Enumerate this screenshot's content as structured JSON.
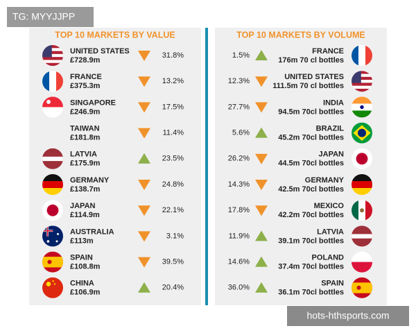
{
  "watermark_top": "TG: MYYJJPP",
  "watermark_bottom": "hots-hthsports.com",
  "value_panel": {
    "title": "TOP 10 MARKETS BY VALUE",
    "rows": [
      {
        "country": "UNITED STATES",
        "value": "£728.9m",
        "trend": "down",
        "change": "31.8%"
      },
      {
        "country": "FRANCE",
        "value": "£375.3m",
        "trend": "down",
        "change": "13.2%"
      },
      {
        "country": "SINGAPORE",
        "value": "£246.9m",
        "trend": "down",
        "change": "17.5%"
      },
      {
        "country": "TAIWAN",
        "value": "£181.8m",
        "trend": "down",
        "change": "11.4%"
      },
      {
        "country": "LATVIA",
        "value": "£175.9m",
        "trend": "up",
        "change": "23.5%"
      },
      {
        "country": "GERMANY",
        "value": "£138.7m",
        "trend": "down",
        "change": "24.8%"
      },
      {
        "country": "JAPAN",
        "value": "£114.9m",
        "trend": "down",
        "change": "22.1%"
      },
      {
        "country": "AUSTRALIA",
        "value": "£113m",
        "trend": "down",
        "change": "3.1%"
      },
      {
        "country": "SPAIN",
        "value": "£108.8m",
        "trend": "down",
        "change": "39.5%"
      },
      {
        "country": "CHINA",
        "value": "£106.9m",
        "trend": "up",
        "change": "20.4%"
      }
    ]
  },
  "volume_panel": {
    "title": "TOP 10 MARKETS BY VOLUME",
    "rows": [
      {
        "change": "1.5%",
        "trend": "up",
        "country": "FRANCE",
        "volume": "176m 70 cl bottles"
      },
      {
        "change": "12.3%",
        "trend": "down",
        "country": "UNITED STATES",
        "volume": "111.5m 70 cl bottles"
      },
      {
        "change": "27.7%",
        "trend": "down",
        "country": "INDIA",
        "volume": "94.5m 70cl bottles"
      },
      {
        "change": "5.6%",
        "trend": "up",
        "country": "BRAZIL",
        "volume": "45.2m 70cl bottles"
      },
      {
        "change": "26.2%",
        "trend": "down",
        "country": "JAPAN",
        "volume": "44.5m 70cl bottles"
      },
      {
        "change": "14.3%",
        "trend": "down",
        "country": "GERMANY",
        "volume": "42.5m 70cl bottles"
      },
      {
        "change": "17.8%",
        "trend": "down",
        "country": "MEXICO",
        "volume": "42.2m 70cl bottles"
      },
      {
        "change": "11.9%",
        "trend": "up",
        "country": "LATVIA",
        "volume": "39.1m 70cl bottles"
      },
      {
        "change": "14.6%",
        "trend": "up",
        "country": "POLAND",
        "volume": "37.4m 70cl bottles"
      },
      {
        "change": "36.0%",
        "trend": "up",
        "country": "SPAIN",
        "volume": "36.1m 70cl bottles"
      }
    ]
  }
}
